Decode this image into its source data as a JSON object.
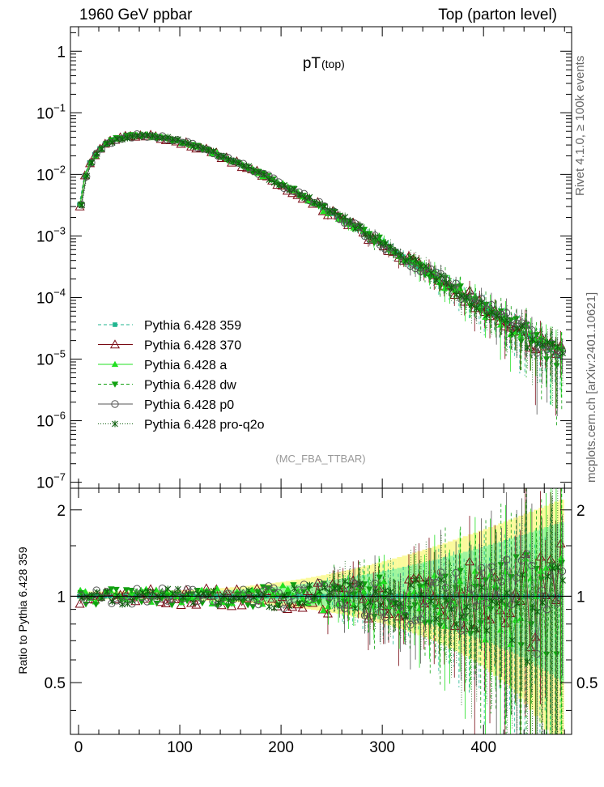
{
  "header": {
    "left": "1960 GeV ppbar",
    "right": "Top (parton level)"
  },
  "side_labels": {
    "rivet": "Rivet 4.1.0, ≥ 100k events",
    "mcplots": "mcplots.cern.ch [arXiv:2401.10621]"
  },
  "chart_data": {
    "type": "line",
    "title": "pT",
    "title_sub": "(top)",
    "watermark": "(MC_FBA_TTBAR)",
    "xlabel": "",
    "ylabel": "",
    "ratio_ylabel": "Ratio to Pythia 6.428 359",
    "xlim": [
      -8,
      487
    ],
    "ylim": [
      8e-08,
      2.5
    ],
    "ratio_ylim": [
      0.33,
      2.38
    ],
    "yscale": "log",
    "x_ticks": [
      "0",
      "100",
      "200",
      "300",
      "400"
    ],
    "y_ticks_main": [
      "1",
      "10^-1",
      "10^-2",
      "10^-3",
      "10^-4",
      "10^-5",
      "10^-6",
      "10^-7"
    ],
    "y_ticks_ratio": [
      "0.5",
      "1",
      "2"
    ],
    "legend_position": "bottom-left",
    "series": [
      {
        "name": "Pythia 6.428 359",
        "color": "#1fb58f",
        "marker": "square",
        "dash": "4,3",
        "ratio_amp": 0.0
      },
      {
        "name": "Pythia 6.428 370",
        "color": "#7a0a14",
        "marker": "triangle-open",
        "dash": "",
        "ratio_amp": 0.55
      },
      {
        "name": "Pythia 6.428 a",
        "color": "#22e022",
        "marker": "triangle",
        "dash": "",
        "ratio_amp": 0.45
      },
      {
        "name": "Pythia 6.428 dw",
        "color": "#10a010",
        "marker": "triangle-down",
        "dash": "4,3",
        "ratio_amp": 0.5
      },
      {
        "name": "Pythia 6.428 p0",
        "color": "#555555",
        "marker": "circle-open",
        "dash": "",
        "ratio_amp": 0.5
      },
      {
        "name": "Pythia 6.428 pro-q2o",
        "color": "#0f5f0f",
        "marker": "star",
        "dash": "1,2",
        "ratio_amp": 0.5
      }
    ],
    "reference_curve": {
      "x": [
        2,
        7,
        12,
        17,
        22,
        27,
        32,
        37,
        42,
        47,
        52,
        57,
        62,
        67,
        72,
        77,
        82,
        87,
        92,
        97,
        102,
        107,
        112,
        117,
        122,
        127,
        132,
        137,
        142,
        147,
        152,
        157,
        162,
        167,
        172,
        177,
        182,
        187,
        192,
        197,
        202,
        207,
        212,
        217,
        222,
        227,
        232,
        237,
        242,
        247,
        252,
        257,
        262,
        267,
        272,
        277,
        282,
        287,
        292,
        297,
        302,
        307,
        312,
        317,
        322,
        327,
        332,
        337,
        342,
        347,
        352,
        357,
        362,
        367,
        372,
        377,
        382,
        387,
        392,
        397,
        402,
        407,
        412,
        417,
        422,
        427,
        432,
        437,
        442,
        447,
        452,
        457,
        462,
        467,
        472,
        477
      ],
      "y": [
        0.0032,
        0.0095,
        0.0155,
        0.021,
        0.0262,
        0.0305,
        0.0342,
        0.0372,
        0.0395,
        0.041,
        0.042,
        0.0424,
        0.0424,
        0.0422,
        0.0415,
        0.0405,
        0.0393,
        0.038,
        0.0365,
        0.035,
        0.0334,
        0.0317,
        0.0299,
        0.0281,
        0.0263,
        0.0246,
        0.0229,
        0.0213,
        0.0197,
        0.0182,
        0.0168,
        0.0154,
        0.0141,
        0.0129,
        0.0118,
        0.0108,
        0.0098,
        0.0089,
        0.0081,
        0.0073,
        0.0066,
        0.006,
        0.0054,
        0.0049,
        0.0044,
        0.0039,
        0.0035,
        0.0032,
        0.0028,
        0.0025,
        0.0023,
        0.002,
        0.0018,
        0.0016,
        0.00145,
        0.0013,
        0.00116,
        0.00103,
        0.00092,
        0.00082,
        0.00073,
        0.00065,
        0.00058,
        0.00052,
        0.00046,
        0.00041,
        0.00036,
        0.00032,
        0.00029,
        0.00026,
        0.00023,
        0.0002,
        0.00018,
        0.00016,
        0.00014,
        0.000125,
        0.00011,
        9.8e-05,
        8.7e-05,
        7.7e-05,
        6.8e-05,
        6e-05,
        5.3e-05,
        4.7e-05,
        4.2e-05,
        3.7e-05,
        3.3e-05,
        2.9e-05,
        2.6e-05,
        2.3e-05,
        2e-05,
        1.8e-05,
        1.6e-05,
        1.4e-05,
        1.25e-05,
        1.1e-05
      ]
    }
  }
}
